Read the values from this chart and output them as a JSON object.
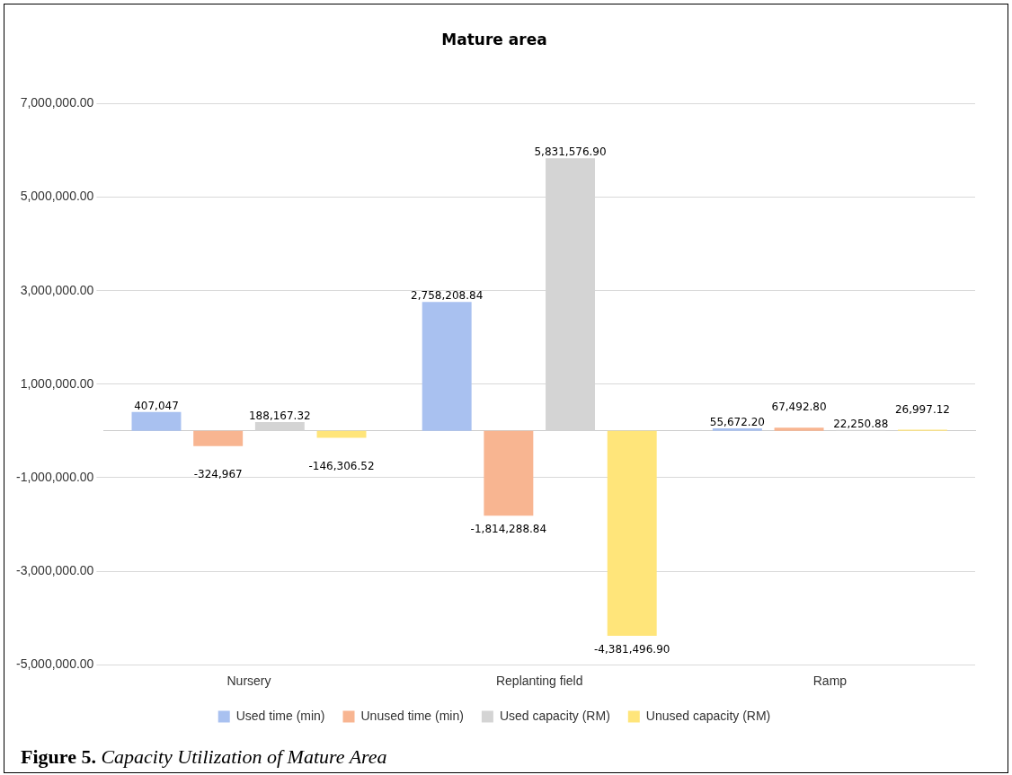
{
  "chart_data": {
    "type": "bar",
    "title": "Mature area",
    "categories": [
      "Nursery",
      "Replanting field",
      "Ramp"
    ],
    "series": [
      {
        "name": "Used time (min)",
        "color": "#a9c1f0",
        "values": [
          407047,
          2758208.84,
          55672.2
        ],
        "value_labels": [
          "407,047",
          "2,758,208.84",
          "55,672.20"
        ]
      },
      {
        "name": "Unused time (min)",
        "color": "#f8b591",
        "values": [
          -324967,
          -1814288.84,
          67492.8
        ],
        "value_labels": [
          "-324,967",
          "-1,814,288.84",
          "67,492.80"
        ]
      },
      {
        "name": "Used capacity (RM)",
        "color": "#d4d4d4",
        "values": [
          188167.32,
          5831576.9,
          22250.88
        ],
        "value_labels": [
          "188,167.32",
          "5,831,576.90",
          "22,250.88"
        ]
      },
      {
        "name": "Unused capacity (RM)",
        "color": "#ffe57a",
        "values": [
          -146306.52,
          -4381496.9,
          26997.12
        ],
        "value_labels": [
          "-146,306.52",
          "-4,381,496.90",
          "26,997.12"
        ]
      }
    ],
    "ylim": [
      -5000000,
      7000000
    ],
    "yticks": [
      {
        "value": -5000000,
        "label": "-5,000,000.00"
      },
      {
        "value": -3000000,
        "label": "-3,000,000.00"
      },
      {
        "value": -1000000,
        "label": "-1,000,000.00"
      },
      {
        "value": 1000000,
        "label": "1,000,000.00"
      },
      {
        "value": 3000000,
        "label": "3,000,000.00"
      },
      {
        "value": 5000000,
        "label": "5,000,000.00"
      },
      {
        "value": 7000000,
        "label": "7,000,000.00"
      }
    ],
    "grid": "y",
    "legend": "bottom",
    "annotations": [
      "Figure 5. Capacity Utilization of Mature Area"
    ]
  }
}
